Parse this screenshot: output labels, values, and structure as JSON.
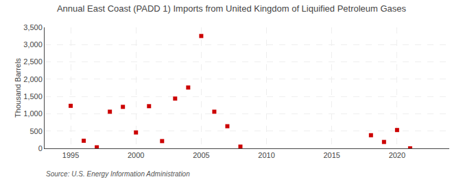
{
  "chart_data": {
    "type": "scatter",
    "title": "Annual East Coast (PADD 1) Imports from United Kingdom of Liquified Petroleum Gases",
    "ylabel": "Thousand Barrels",
    "annotations": [
      "Source: U.S. Energy Information Administration"
    ],
    "x": [
      1995,
      1996,
      1997,
      1998,
      1999,
      2000,
      2001,
      2002,
      2003,
      2004,
      2005,
      2006,
      2007,
      2008,
      2018,
      2019,
      2020,
      2021
    ],
    "values": [
      1230,
      220,
      30,
      1060,
      1200,
      460,
      1220,
      210,
      1440,
      1760,
      3250,
      1060,
      640,
      50,
      380,
      185,
      530,
      0
    ],
    "color": "#cc0000",
    "marker": "square",
    "xlim": [
      1993,
      2024
    ],
    "xticks": [
      1995,
      2000,
      2005,
      2010,
      2015,
      2020
    ],
    "ylim": [
      0,
      3500
    ],
    "yticks": [
      0,
      500,
      {
        "value": 1000,
        "label": "1,000"
      },
      {
        "value": 1500,
        "label": "1,500"
      },
      {
        "value": 2000,
        "label": "2,000"
      },
      {
        "value": 2500,
        "label": "2,500"
      },
      {
        "value": 3000,
        "label": "3,000"
      },
      {
        "value": 3500,
        "label": "3,500"
      }
    ],
    "grid": true
  }
}
